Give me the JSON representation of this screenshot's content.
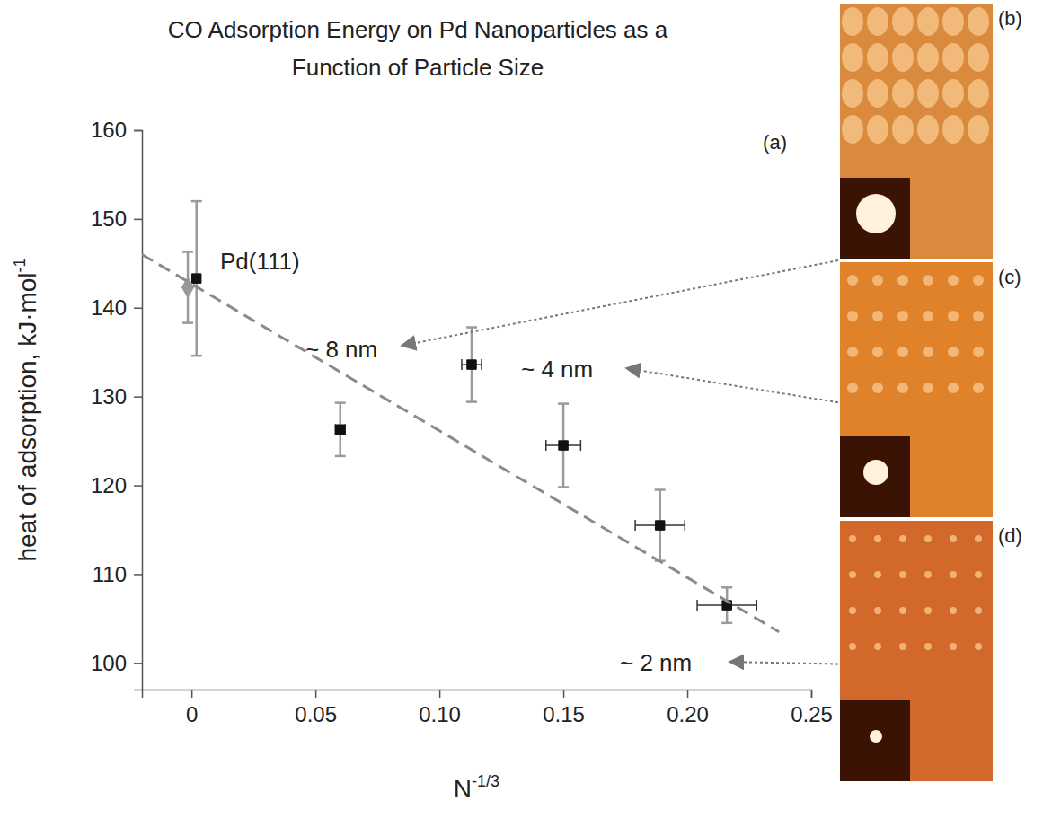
{
  "chart_data": {
    "type": "scatter",
    "title": "CO Adsorption Energy on Pd Nanoparticles as a Function of Particle Size",
    "x_label": {
      "text": "N",
      "superscript": "-1/3"
    },
    "y_label": {
      "text": "heat of adsorption, kJ·mol",
      "superscript": "-1"
    },
    "xlim": [
      -0.02,
      0.25
    ],
    "xticks": [
      0,
      0.05,
      {
        "value": 0.1,
        "label": "0.10"
      },
      0.15,
      {
        "value": 0.2,
        "label": "0.20"
      },
      0.25
    ],
    "ylim": [
      97,
      160
    ],
    "yticks": [
      100,
      110,
      120,
      130,
      140,
      150,
      160
    ],
    "grid": false,
    "series": [
      {
        "type": "scatter",
        "marker": "square",
        "color": "#111111",
        "x": [
          0.002,
          0.06,
          0.113,
          0.15,
          0.189,
          0.216
        ],
        "values": [
          143.3,
          126.3,
          133.6,
          124.5,
          115.5,
          106.5
        ],
        "y_err": [
          8.7,
          3,
          4.2,
          4.7,
          4,
          2
        ],
        "x_err": [
          0,
          0.002,
          0.004,
          0.007,
          0.01,
          0.012
        ]
      },
      {
        "type": "scatter",
        "marker": "diamond",
        "color": "#999999",
        "x": [
          -0.0015
        ],
        "values": [
          142.3
        ],
        "y_err": [
          4
        ]
      },
      {
        "type": "line",
        "line_style": "dashed",
        "color": "#8a8a8a",
        "x": [
          -0.02,
          0.237
        ],
        "values": [
          146,
          103.5
        ]
      }
    ],
    "annotations": [
      "Pd(111)",
      "~ 8 nm",
      "~ 4 nm",
      "~ 2 nm",
      "(a)"
    ],
    "panels": [
      "(b)",
      "(c)",
      "(d)"
    ]
  }
}
